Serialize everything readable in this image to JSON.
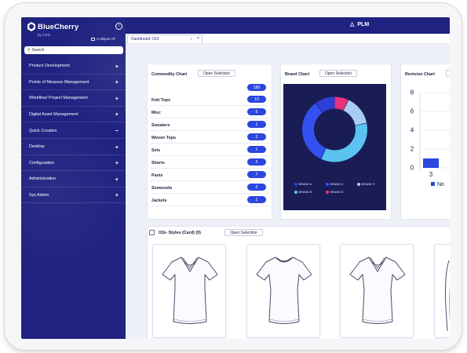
{
  "app": {
    "brand_name": "BlueCherry",
    "brand_sub": "by CGS",
    "collapse_all": "Collapse All",
    "title": "PLM"
  },
  "colors": {
    "navy": "#1f2280",
    "accent_blue": "#2c46e0",
    "donut_bg": "#1a1d55"
  },
  "search": {
    "placeholder": "Search",
    "icon": "search-icon"
  },
  "sidebar": {
    "items": [
      {
        "label": "Product Development",
        "state": "+"
      },
      {
        "label": "Points of Measure Management",
        "state": "+"
      },
      {
        "label": "Workflow/ Project Management",
        "state": "+"
      },
      {
        "label": "Digital Asset Management",
        "state": "+"
      },
      {
        "label": "Quick Creation",
        "state": "−"
      },
      {
        "label": "Desktop",
        "state": "+"
      },
      {
        "label": "Configuration",
        "state": "+"
      },
      {
        "label": "Administration",
        "state": "+"
      },
      {
        "label": "Sys Admin",
        "state": "+"
      }
    ]
  },
  "tab": {
    "label": "Dashboard: 013",
    "caret": "⌄",
    "close": "×"
  },
  "commodity": {
    "title": "Commodity Chart",
    "button": "Open Selection",
    "total": "180",
    "rows": [
      {
        "label": "Knit Tops",
        "value": "10"
      },
      {
        "label": "Misc",
        "value": "5"
      },
      {
        "label": "Sweaters",
        "value": "1"
      },
      {
        "label": "Woven Tops",
        "value": "2"
      },
      {
        "label": "Sets",
        "value": "1"
      },
      {
        "label": "Shorts",
        "value": "2"
      },
      {
        "label": "Pants",
        "value": "7"
      },
      {
        "label": "Snowsuits",
        "value": "2"
      },
      {
        "label": "Jackets",
        "value": "1"
      }
    ]
  },
  "brand_chart": {
    "title": "Brand Chart",
    "button": "Open Selection",
    "legend": [
      {
        "name": "BRAND A",
        "color": "#2d3fd6"
      },
      {
        "name": "BRAND C",
        "color": "#3450f0"
      },
      {
        "name": "BRAND E",
        "color": "#a9cdf4"
      },
      {
        "name": "BRAND B",
        "color": "#5bc3f2"
      },
      {
        "name": "BRAND D",
        "color": "#e8327d"
      }
    ]
  },
  "revision_chart": {
    "title": "Revision Chart",
    "y_ticks": [
      "8",
      "6",
      "4",
      "2",
      "0"
    ],
    "x_label": "3",
    "legend_label": "No"
  },
  "styles": {
    "title": "01b- Styles (Card) (9)",
    "button": "Open Selection",
    "items": [
      {
        "name": "v-neck-tshirt"
      },
      {
        "name": "crew-neck-tshirt"
      },
      {
        "name": "v-neck-fitted-tshirt"
      }
    ]
  },
  "chart_data": [
    {
      "type": "pie",
      "categories": [
        "BRAND A",
        "BRAND B",
        "BRAND C",
        "BRAND D",
        "BRAND E"
      ],
      "values": [
        10,
        35,
        33,
        7,
        15
      ]
    },
    {
      "type": "bar",
      "categories": [
        "3"
      ],
      "series": [
        {
          "name": "No",
          "values": [
            1
          ]
        }
      ],
      "ylim": [
        0,
        8
      ]
    }
  ]
}
